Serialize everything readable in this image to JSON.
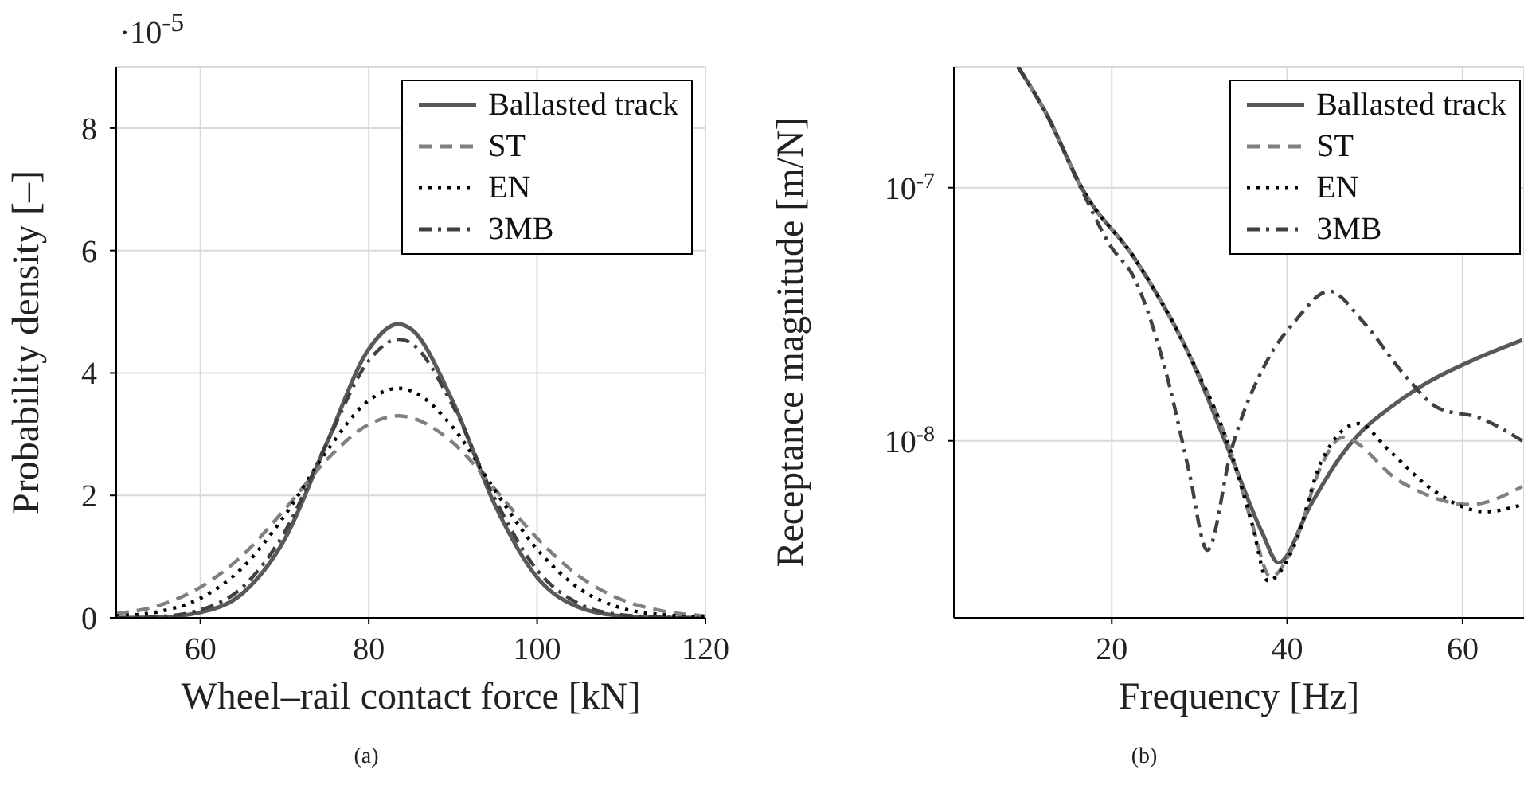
{
  "chart_data": [
    {
      "type": "line",
      "xlabel": "Wheel–rail contact force [kN]",
      "ylabel": "Probability density [–]",
      "annotations": [
        "·10$^{-5}$",
        "(a)"
      ],
      "x": [
        50,
        55,
        60,
        65,
        70,
        75,
        80,
        83.5,
        85,
        90,
        95,
        100,
        105,
        110,
        115,
        120
      ],
      "xlim": [
        50,
        120
      ],
      "xticks": [
        60,
        80,
        100,
        120
      ],
      "ylim": [
        0,
        9
      ],
      "yticks": [
        0,
        2,
        4,
        6,
        8
      ],
      "grid": true,
      "legend": "top right",
      "series": [
        {
          "name": "Ballasted track",
          "color": "#595959",
          "line_style": "solid",
          "values": [
            0.0,
            0.01,
            0.09,
            0.4,
            1.28,
            2.85,
            4.39,
            4.8,
            4.72,
            3.53,
            1.84,
            0.66,
            0.17,
            0.03,
            0.0,
            0.0
          ]
        },
        {
          "name": "ST",
          "color": "#808080",
          "line_style": "dashed",
          "values": [
            0.07,
            0.2,
            0.5,
            1.02,
            1.77,
            2.58,
            3.16,
            3.3,
            3.27,
            2.86,
            2.1,
            1.3,
            0.68,
            0.3,
            0.11,
            0.03
          ]
        },
        {
          "name": "EN",
          "color": "#000000",
          "line_style": "dotted",
          "values": [
            0.03,
            0.1,
            0.32,
            0.82,
            1.67,
            2.72,
            3.55,
            3.75,
            3.71,
            3.11,
            2.08,
            1.12,
            0.48,
            0.16,
            0.05,
            0.01
          ]
        },
        {
          "name": "3MB",
          "color": "#404040",
          "line_style": "dashdot",
          "values": [
            0.0,
            0.02,
            0.13,
            0.5,
            1.4,
            2.85,
            4.2,
            4.55,
            4.49,
            3.46,
            1.94,
            0.78,
            0.23,
            0.05,
            0.01,
            0.0
          ]
        }
      ]
    },
    {
      "type": "line",
      "xlabel": "Frequency [Hz]",
      "ylabel": "Receptance magnitude [m/N]",
      "annotations": [
        "(b)"
      ],
      "log": "y",
      "xlim": [
        2,
        67
      ],
      "xticks": [
        20,
        40,
        60
      ],
      "ylim": [
        2e-09,
        3e-07
      ],
      "yticks": [
        {
          "value": 1e-07,
          "label": "10$^{-7}$"
        },
        {
          "value": 1e-08,
          "label": "10$^{-8}$"
        }
      ],
      "grid": true,
      "legend": "top right",
      "series": [
        {
          "name": "Ballasted track",
          "color": "#595959",
          "line_style": "solid",
          "x": [
            9.3,
            12.4,
            16.7,
            22.7,
            28.8,
            33.6,
            37.2,
            39,
            42.7,
            45.7,
            48.7,
            51.7,
            56,
            61.4,
            66.8
          ],
          "values": [
            3e-07,
            2e-07,
            9.8e-08,
            5.2e-08,
            2.2e-08,
            8.7e-09,
            4.3e-09,
            3.3e-09,
            5.6e-09,
            8.3e-09,
            1.11e-08,
            1.35e-08,
            1.7e-08,
            2.1e-08,
            2.5e-08
          ]
        },
        {
          "name": "ST",
          "color": "#808080",
          "line_style": "dashed",
          "x": [
            9.3,
            12.4,
            16.7,
            22.7,
            28.8,
            33.6,
            36,
            38.1,
            40.8,
            43.9,
            46.3,
            52.9,
            60.8,
            66.8
          ],
          "values": [
            3e-07,
            2e-07,
            9.8e-08,
            5.2e-08,
            2.2e-08,
            9e-09,
            4.7e-09,
            2.9e-09,
            3.9e-09,
            8e-09,
            1.03e-08,
            6.9e-09,
            5.6e-09,
            6.6e-09
          ]
        },
        {
          "name": "EN",
          "color": "#000000",
          "line_style": "dotted",
          "x": [
            9.3,
            12.4,
            16.7,
            22.7,
            28.8,
            33.6,
            36,
            37.8,
            40.8,
            43.9,
            48.1,
            51.7,
            56.6,
            62.6,
            66.8
          ],
          "values": [
            3e-07,
            2e-07,
            9.8e-08,
            5.2e-08,
            2.2e-08,
            9e-09,
            4.7e-09,
            2.8e-09,
            3.85e-09,
            8.3e-09,
            1.17e-08,
            9.1e-09,
            6.4e-09,
            5.25e-09,
            5.6e-09
          ]
        },
        {
          "name": "3MB",
          "color": "#404040",
          "line_style": "dashdot",
          "x": [
            9.3,
            12.4,
            16.7,
            19.7,
            22.7,
            26.3,
            28.8,
            30.9,
            33.6,
            37.8,
            40.8,
            44.8,
            48.7,
            53.5,
            57.2,
            62,
            66.8
          ],
          "values": [
            3e-07,
            2e-07,
            9.6e-08,
            6e-08,
            4.3e-08,
            1.8e-08,
            7.6e-09,
            3.7e-09,
            9.1e-09,
            2.1e-08,
            2.94e-08,
            3.9e-08,
            2.94e-08,
            1.8e-08,
            1.35e-08,
            1.23e-08,
            1e-08
          ]
        }
      ]
    }
  ]
}
